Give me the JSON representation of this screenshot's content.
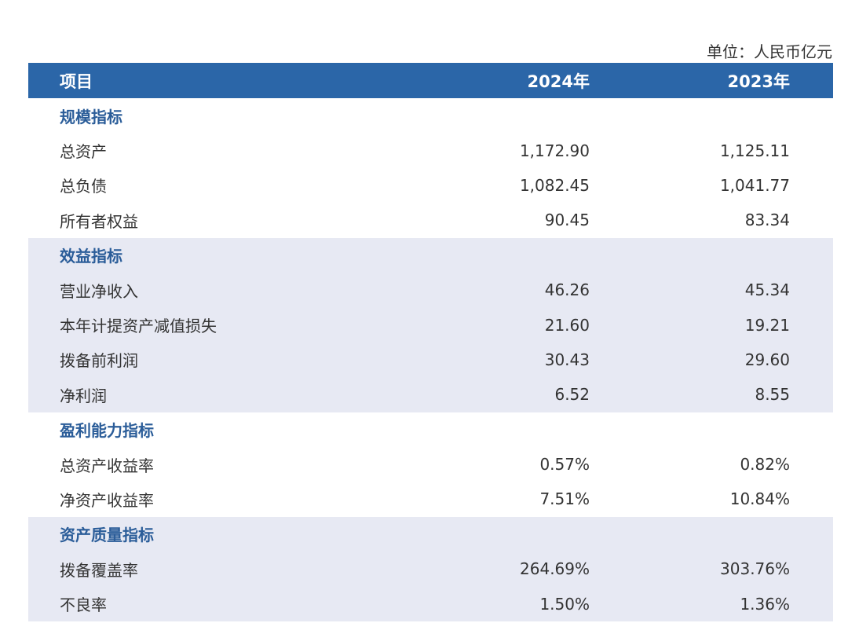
{
  "unit_label": "单位：人民币亿元",
  "header": {
    "item": "项目",
    "col_2024": "2024年",
    "col_2023": "2023年"
  },
  "sections": [
    {
      "title": "规模指标",
      "rows": [
        {
          "label": "总资产",
          "v2024": "1,172.90",
          "v2023": "1,125.11"
        },
        {
          "label": "总负债",
          "v2024": "1,082.45",
          "v2023": "1,041.77"
        },
        {
          "label": "所有者权益",
          "v2024": "90.45",
          "v2023": "83.34"
        }
      ]
    },
    {
      "title": "效益指标",
      "rows": [
        {
          "label": "营业净收入",
          "v2024": "46.26",
          "v2023": "45.34"
        },
        {
          "label": "本年计提资产减值损失",
          "v2024": "21.60",
          "v2023": "19.21"
        },
        {
          "label": "拨备前利润",
          "v2024": "30.43",
          "v2023": "29.60"
        },
        {
          "label": "净利润",
          "v2024": "6.52",
          "v2023": "8.55"
        }
      ]
    },
    {
      "title": "盈利能力指标",
      "rows": [
        {
          "label": "总资产收益率",
          "v2024": "0.57%",
          "v2023": "0.82%"
        },
        {
          "label": "净资产收益率",
          "v2024": "7.51%",
          "v2023": "10.84%"
        }
      ]
    },
    {
      "title": "资产质量指标",
      "rows": [
        {
          "label": "拨备覆盖率",
          "v2024": "264.69%",
          "v2023": "303.76%"
        },
        {
          "label": "不良率",
          "v2024": "1.50%",
          "v2023": "1.36%"
        }
      ]
    }
  ],
  "colors": {
    "header_bg": "#2b66a8",
    "section_title": "#2b5d99",
    "shaded_bg": "#e7e9f3"
  }
}
